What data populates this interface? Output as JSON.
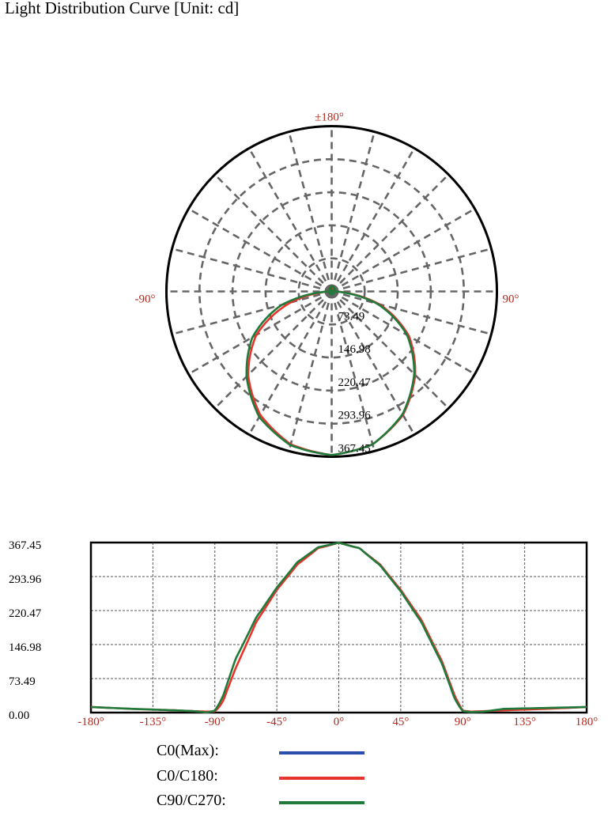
{
  "title": "Light Distribution Curve [Unit: cd]",
  "colors": {
    "c0_max": "#2a4fa8",
    "c0_c180": "#e8342b",
    "c90_c270": "#1f7a3c",
    "axis_label": "#b22a1e",
    "grid": "#666666",
    "frame": "#000000"
  },
  "legend": [
    {
      "label": "C0(Max):",
      "color": "#2a4fa8"
    },
    {
      "label": "C0/C180:",
      "color": "#e8342b"
    },
    {
      "label": "C90/C270:",
      "color": "#1f7a3c"
    }
  ],
  "chart_data": [
    {
      "type": "polar",
      "angle_labels": {
        "top": "±180°",
        "left": "-90°",
        "right": "90°"
      },
      "radial_ticks": [
        "73.49",
        "146.98",
        "220.47",
        "293.96",
        "367.45"
      ],
      "rmax": 367.45,
      "angle_step_deg": 15,
      "series": [
        {
          "name": "C0/C180",
          "color": "#e8342b",
          "x": [
            -180,
            -150,
            -120,
            -105,
            -95,
            -90,
            -85,
            -75,
            -60,
            -45,
            -30,
            -15,
            0,
            15,
            30,
            45,
            60,
            75,
            85,
            90,
            95,
            105,
            120,
            150,
            180
          ],
          "y": [
            12,
            8,
            5,
            3,
            2,
            3,
            18,
            95,
            195,
            265,
            320,
            355,
            367,
            355,
            320,
            265,
            200,
            110,
            30,
            5,
            2,
            3,
            5,
            8,
            12
          ]
        },
        {
          "name": "C90/C270",
          "color": "#1f7a3c",
          "x": [
            -180,
            -150,
            -120,
            -105,
            -95,
            -90,
            -85,
            -75,
            -60,
            -45,
            -30,
            -15,
            0,
            15,
            30,
            45,
            60,
            75,
            85,
            90,
            95,
            105,
            120,
            150,
            180
          ],
          "y": [
            12,
            8,
            5,
            3,
            0,
            5,
            28,
            115,
            205,
            270,
            325,
            357,
            367,
            355,
            318,
            262,
            195,
            105,
            24,
            4,
            1,
            2,
            8,
            10,
            12
          ]
        }
      ]
    },
    {
      "type": "line",
      "xlim": [
        -180,
        180
      ],
      "ylim": [
        0,
        367.45
      ],
      "xticks": [
        "-180°",
        "-135°",
        "-90°",
        "-45°",
        "0°",
        "45°",
        "90°",
        "135°",
        "180°"
      ],
      "yticks": [
        "0.00",
        "73.49",
        "146.98",
        "220.47",
        "293.96",
        "367.45"
      ],
      "grid": true,
      "series": [
        {
          "name": "C0/C180",
          "color": "#e8342b",
          "x": [
            -180,
            -150,
            -120,
            -105,
            -95,
            -90,
            -85,
            -75,
            -60,
            -45,
            -30,
            -15,
            0,
            15,
            30,
            45,
            60,
            75,
            85,
            90,
            95,
            105,
            120,
            150,
            180
          ],
          "y": [
            12,
            8,
            5,
            3,
            2,
            3,
            18,
            95,
            195,
            265,
            320,
            355,
            367,
            355,
            320,
            265,
            200,
            110,
            30,
            5,
            2,
            3,
            5,
            8,
            12
          ]
        },
        {
          "name": "C90/C270",
          "color": "#1f7a3c",
          "x": [
            -180,
            -150,
            -120,
            -105,
            -95,
            -90,
            -85,
            -75,
            -60,
            -45,
            -30,
            -15,
            0,
            15,
            30,
            45,
            60,
            75,
            85,
            90,
            95,
            105,
            120,
            150,
            180
          ],
          "y": [
            12,
            8,
            5,
            3,
            0,
            5,
            28,
            115,
            205,
            270,
            325,
            357,
            367,
            355,
            318,
            262,
            195,
            105,
            24,
            4,
            1,
            2,
            8,
            10,
            12
          ]
        }
      ]
    }
  ]
}
